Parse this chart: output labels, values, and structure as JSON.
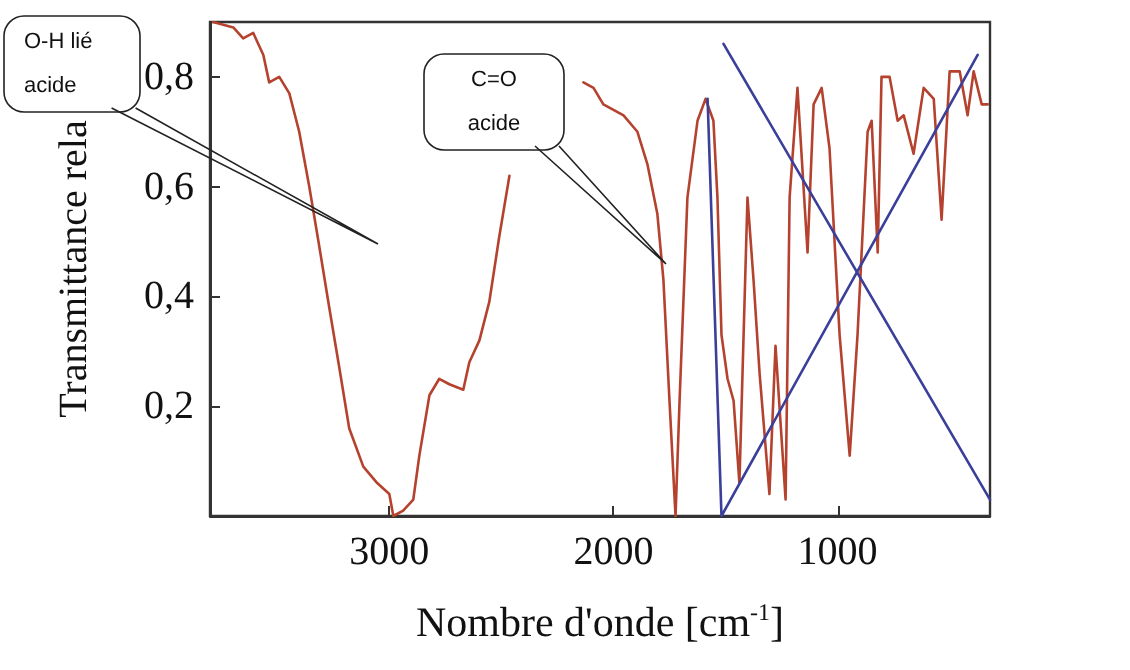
{
  "chart_data": {
    "type": "line",
    "xlabel": "Nombre d'onde [cm$^{-1}$]",
    "ylabel": "Transmittance rela",
    "xlim": [
      3800,
      320
    ],
    "xticks": [
      3000,
      2000,
      1000
    ],
    "ylim": [
      0,
      0.9
    ],
    "yticks": [
      {
        "value": 0.2,
        "label": "0,2"
      },
      {
        "value": 0.4,
        "label": "0,4"
      },
      {
        "value": 0.6,
        "label": "0,6"
      },
      {
        "value": 0.8,
        "label": "0,8"
      }
    ],
    "grid": false,
    "marker": "none",
    "line_style": "solid",
    "series": [
      {
        "color": "#b5422e",
        "x": [
          3786,
          3696,
          3652,
          3607,
          3562,
          3536,
          3491,
          3446,
          3402,
          3357,
          3312,
          3268,
          3223,
          3179,
          3116,
          3054,
          3000,
          2982,
          2938,
          2893,
          2866,
          2821,
          2777,
          2732,
          2670,
          2643,
          2598,
          2554,
          2509,
          2464,
          2429,
          2402,
          2300,
          2200,
          2134,
          2089,
          2045,
          1955,
          1893,
          1848,
          1804,
          1777,
          1750,
          1723,
          1705,
          1670,
          1625,
          1589,
          1554,
          1536,
          1518,
          1491,
          1464,
          1438,
          1402,
          1375,
          1348,
          1304,
          1277,
          1232,
          1214,
          1179,
          1134,
          1107,
          1071,
          1036,
          991,
          946,
          911,
          866,
          848,
          821,
          804,
          768,
          732,
          705,
          661,
          616,
          571,
          536,
          500,
          455,
          420,
          393,
          357,
          330
        ],
        "values": [
          0.9,
          0.89,
          0.87,
          0.88,
          0.84,
          0.79,
          0.8,
          0.77,
          0.7,
          0.6,
          0.49,
          0.38,
          0.27,
          0.16,
          0.09,
          0.06,
          0.04,
          0.0,
          0.01,
          0.03,
          0.11,
          0.22,
          0.25,
          0.24,
          0.23,
          0.28,
          0.32,
          0.39,
          0.51,
          0.62,
          null,
          null,
          null,
          null,
          0.79,
          0.78,
          0.75,
          0.73,
          0.7,
          0.64,
          0.55,
          0.43,
          0.21,
          0.0,
          0.21,
          0.58,
          0.72,
          0.76,
          0.72,
          0.58,
          0.33,
          0.25,
          0.21,
          0.06,
          0.58,
          0.43,
          0.26,
          0.04,
          0.31,
          0.03,
          0.58,
          0.78,
          0.48,
          0.75,
          0.78,
          0.67,
          0.33,
          0.11,
          0.33,
          0.7,
          0.72,
          0.48,
          0.8,
          0.8,
          0.72,
          0.73,
          0.66,
          0.78,
          0.76,
          0.54,
          0.81,
          0.81,
          0.73,
          0.81,
          0.75,
          0.75
        ]
      },
      {
        "color": "#3a3f9a",
        "x": [
          1509,
          320
        ],
        "values": [
          0.86,
          0.03
        ]
      },
      {
        "color": "#3a3f9a",
        "x": [
          1580,
          1518,
          375
        ],
        "values": [
          0.76,
          0.0,
          0.84
        ]
      }
    ],
    "annotations": [
      "O-H lié\nacide",
      "C=O\nacide"
    ]
  }
}
